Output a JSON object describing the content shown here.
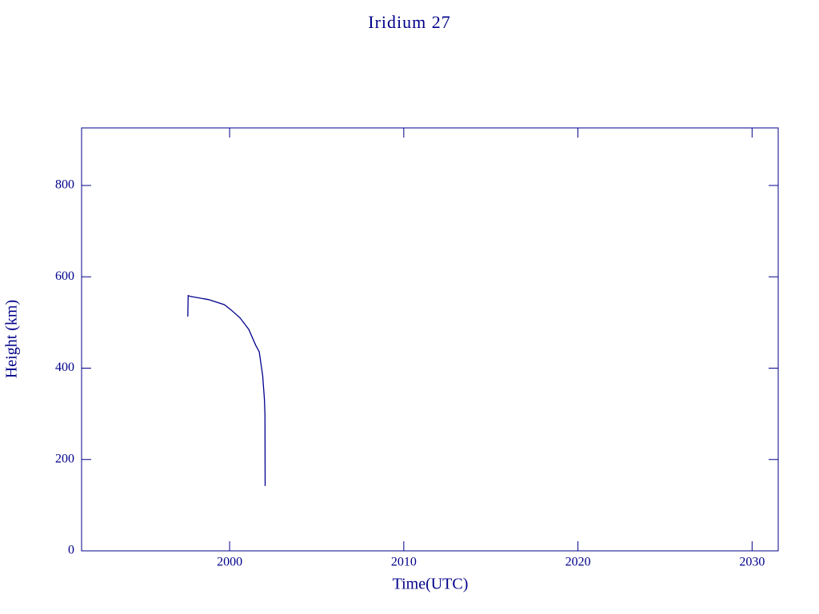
{
  "chart_data": {
    "type": "line",
    "title": "Iridium 27",
    "x_label": "Time(UTC)",
    "y_label": "Height (km)",
    "x": [
      1997.6,
      1997.62,
      1997.75,
      1998.8,
      1999.7,
      2000.1,
      2000.6,
      2001.1,
      2001.5,
      2001.7,
      2001.9,
      2002.0,
      2002.03,
      2002.04
    ],
    "series": [
      {
        "name": "Height",
        "color": "#00008b",
        "values": [
          513,
          559,
          557,
          550,
          539,
          527,
          510,
          485,
          450,
          436,
          383,
          331,
          296,
          142
        ]
      }
    ],
    "xlim": [
      1991.5,
      2031.5
    ],
    "xticks": [
      2000,
      2010,
      2020,
      2030
    ],
    "ylim": [
      0,
      926
    ],
    "yticks": [
      0,
      200,
      400,
      600,
      800
    ]
  }
}
